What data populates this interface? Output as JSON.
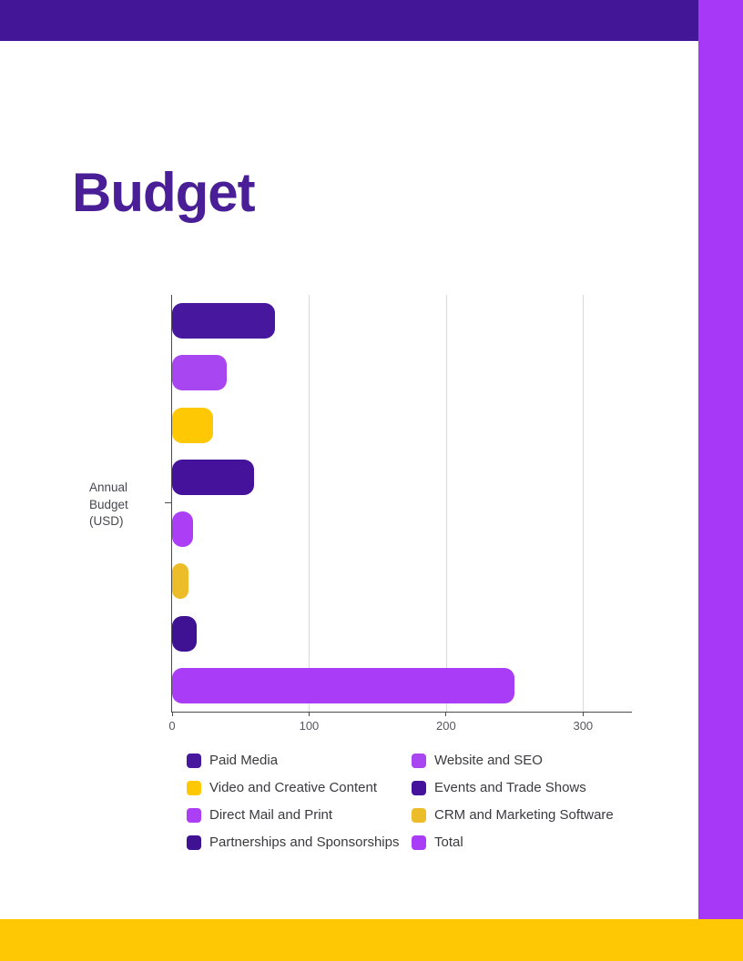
{
  "page": {
    "title": "Budget",
    "accent_colors": {
      "header_bar": "#431697",
      "side_bar": "#A838F8",
      "footer_bar": "#FFC805",
      "title_text": "#4A1E96"
    }
  },
  "chart_data": {
    "type": "bar",
    "orientation": "horizontal",
    "title": "",
    "xlabel": "",
    "ylabel": "Annual Budget (USD)",
    "ylabel_lines": [
      "Annual",
      "Budget",
      "(USD)"
    ],
    "categories": [
      "Paid Media",
      "Website and SEO",
      "Video and Creative Content",
      "Events and Trade Shows",
      "Direct Mail and Print",
      "CRM and Marketing Software",
      "Partnerships and Sponsorships",
      "Total"
    ],
    "values": [
      75,
      40,
      30,
      60,
      15,
      12,
      18,
      250
    ],
    "colors": [
      "#47189E",
      "#A846F2",
      "#FFC805",
      "#44129B",
      "#AC3FF5",
      "#EDBD29",
      "#3F1193",
      "#A93DF7"
    ],
    "x_ticks": [
      0,
      100,
      200,
      300
    ],
    "xlim": [
      0,
      335
    ],
    "grid": true,
    "legend_position": "bottom",
    "legend_columns": 2
  }
}
